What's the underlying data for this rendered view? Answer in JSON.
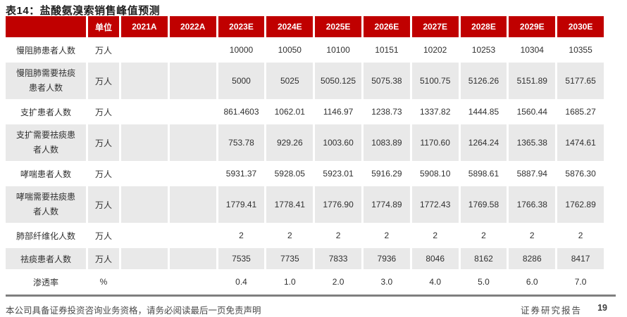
{
  "title": "表14：盐酸氨溴索销售峰值预测",
  "colors": {
    "header_red": "#C00000",
    "row_gray": "#E9E9E9",
    "divider_gray": "#7f7f7f"
  },
  "table": {
    "header": [
      "",
      "单位",
      "2021A",
      "2022A",
      "2023E",
      "2024E",
      "2025E",
      "2026E",
      "2027E",
      "2028E",
      "2029E",
      "2030E"
    ],
    "rows": [
      {
        "label": "慢阻肺患者人数",
        "label2": "",
        "unit": "万人",
        "values": [
          "",
          "",
          "10000",
          "10050",
          "10100",
          "10151",
          "10202",
          "10253",
          "10304",
          "10355"
        ]
      },
      {
        "label": "慢阻肺需要祛痰",
        "label2": "患者人数",
        "unit": "万人",
        "values": [
          "",
          "",
          "5000",
          "5025",
          "5050.125",
          "5075.38",
          "5100.75",
          "5126.26",
          "5151.89",
          "5177.65"
        ]
      },
      {
        "label": "支扩患者人数",
        "label2": "",
        "unit": "万人",
        "values": [
          "",
          "",
          "861.4603",
          "1062.01",
          "1146.97",
          "1238.73",
          "1337.82",
          "1444.85",
          "1560.44",
          "1685.27"
        ]
      },
      {
        "label": "支扩需要祛痰患",
        "label2": "者人数",
        "unit": "万人",
        "values": [
          "",
          "",
          "753.78",
          "929.26",
          "1003.60",
          "1083.89",
          "1170.60",
          "1264.24",
          "1365.38",
          "1474.61"
        ]
      },
      {
        "label": "哮喘患者人数",
        "label2": "",
        "unit": "万人",
        "values": [
          "",
          "",
          "5931.37",
          "5928.05",
          "5923.01",
          "5916.29",
          "5908.10",
          "5898.61",
          "5887.94",
          "5876.30"
        ]
      },
      {
        "label": "哮喘需要祛痰患",
        "label2": "者人数",
        "unit": "万人",
        "values": [
          "",
          "",
          "1779.41",
          "1778.41",
          "1776.90",
          "1774.89",
          "1772.43",
          "1769.58",
          "1766.38",
          "1762.89"
        ]
      },
      {
        "label": "肺部纤维化人数",
        "label2": "",
        "unit": "万人",
        "values": [
          "",
          "",
          "2",
          "2",
          "2",
          "2",
          "2",
          "2",
          "2",
          "2"
        ]
      },
      {
        "label": "祛痰患者人数",
        "label2": "",
        "unit": "万人",
        "values": [
          "",
          "",
          "7535",
          "7735",
          "7833",
          "7936",
          "8046",
          "8162",
          "8286",
          "8417"
        ]
      },
      {
        "label": "渗透率",
        "label2": "",
        "unit": "%",
        "values": [
          "",
          "",
          "0.4",
          "1.0",
          "2.0",
          "3.0",
          "4.0",
          "5.0",
          "6.0",
          "7.0"
        ]
      }
    ]
  },
  "footer": {
    "left": "本公司具备证券投资咨询业务资格，请务必阅读最后一页免责声明",
    "right": "证券研究报告",
    "page": "19"
  }
}
